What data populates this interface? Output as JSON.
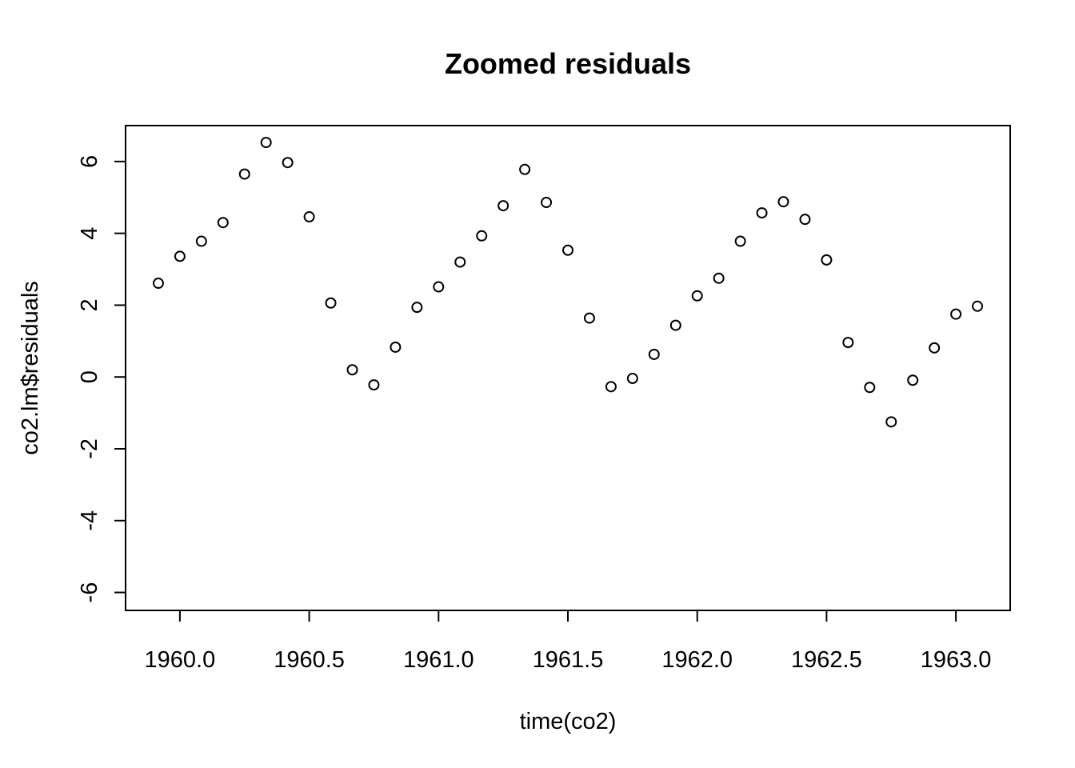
{
  "chart_data": {
    "type": "scatter",
    "title": "Zoomed residuals",
    "xlabel": "time(co2)",
    "ylabel": "co2.lm$residuals",
    "xlim": [
      1959.9167,
      1963.0833
    ],
    "ylim": [
      -6.5,
      7
    ],
    "x_ticks": [
      1960.0,
      1960.5,
      1961.0,
      1961.5,
      1962.0,
      1962.5,
      1963.0
    ],
    "x_tick_labels": [
      "1960.0",
      "1960.5",
      "1961.0",
      "1961.5",
      "1962.0",
      "1962.5",
      "1963.0"
    ],
    "y_ticks": [
      -6,
      -4,
      -2,
      0,
      2,
      4,
      6
    ],
    "y_tick_labels": [
      "-6",
      "-4",
      "-2",
      "0",
      "2",
      "4",
      "6"
    ],
    "grid": false,
    "series": [
      {
        "x": [
          1959.9167,
          1960.0,
          1960.0833,
          1960.1667,
          1960.25,
          1960.3333,
          1960.4167,
          1960.5,
          1960.5833,
          1960.6667,
          1960.75,
          1960.8333,
          1960.9167,
          1961.0,
          1961.0833,
          1961.1667,
          1961.25,
          1961.3333,
          1961.4167,
          1961.5,
          1961.5833,
          1961.6667,
          1961.75,
          1961.8333,
          1961.9167,
          1962.0,
          1962.0833,
          1962.1667,
          1962.25,
          1962.3333,
          1962.4167,
          1962.5,
          1962.5833,
          1962.6667,
          1962.75,
          1962.8333,
          1962.9167,
          1963.0,
          1963.0833
        ],
        "y": [
          2.61,
          3.36,
          3.78,
          4.3,
          5.65,
          6.53,
          5.97,
          4.46,
          2.06,
          0.2,
          -0.22,
          0.83,
          1.94,
          2.51,
          3.2,
          3.93,
          4.77,
          5.78,
          4.86,
          3.53,
          1.64,
          -0.27,
          -0.04,
          0.63,
          1.44,
          2.26,
          2.75,
          3.78,
          4.57,
          4.88,
          4.39,
          3.26,
          0.96,
          -0.29,
          -1.25,
          -0.09,
          0.81,
          1.75,
          1.97
        ]
      }
    ]
  }
}
